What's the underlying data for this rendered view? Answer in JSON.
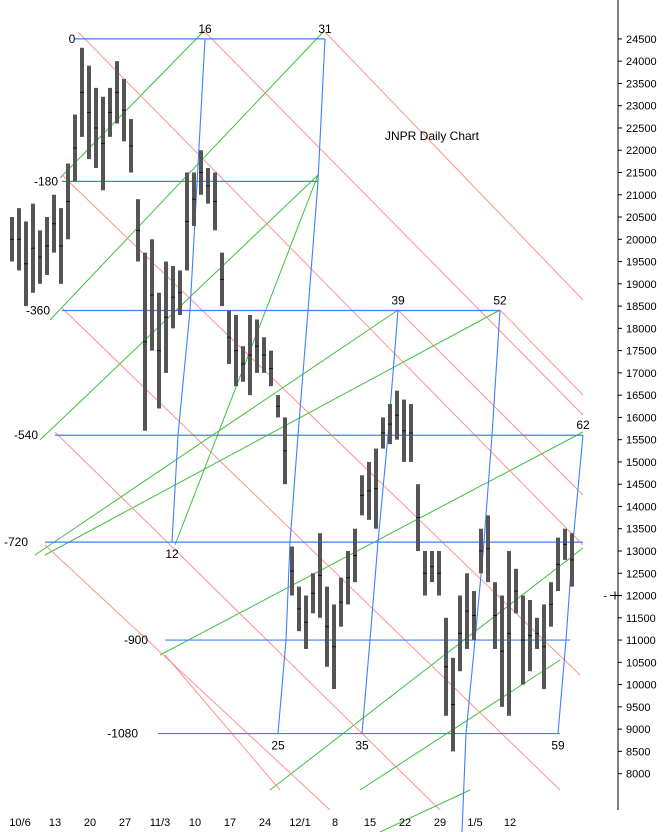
{
  "chart_data": {
    "type": "bar",
    "subtype": "ohlc-daily-with-gann-grid",
    "title": "JNPR Daily Chart",
    "xlabel": "",
    "ylabel": "",
    "ylim": [
      7700,
      24700
    ],
    "x_range": [
      -1,
      115
    ],
    "grid": false,
    "y_ticks": [
      8000,
      8500,
      9000,
      9500,
      10000,
      10500,
      11000,
      11500,
      12000,
      12500,
      13000,
      13500,
      14000,
      14500,
      15000,
      15500,
      16000,
      16500,
      17000,
      17500,
      18000,
      18500,
      19000,
      19500,
      20000,
      20500,
      21000,
      21500,
      22000,
      22500,
      23000,
      23500,
      24000,
      24500
    ],
    "x_ticks": [
      {
        "x": 0,
        "label": "10/6"
      },
      {
        "x": 5,
        "label": "13"
      },
      {
        "x": 10,
        "label": "20"
      },
      {
        "x": 15,
        "label": "27"
      },
      {
        "x": 20,
        "label": "11/3"
      },
      {
        "x": 25,
        "label": "10"
      },
      {
        "x": 30,
        "label": "17"
      },
      {
        "x": 35,
        "label": "24"
      },
      {
        "x": 40,
        "label": "12/1"
      },
      {
        "x": 45,
        "label": "8"
      },
      {
        "x": 50,
        "label": "15"
      },
      {
        "x": 55,
        "label": "22"
      },
      {
        "x": 60,
        "label": "29"
      },
      {
        "x": 65,
        "label": "1/5"
      },
      {
        "x": 70,
        "label": "12"
      }
    ],
    "last_price_marker": 12000,
    "bars": [
      {
        "x": 0,
        "high": 20500,
        "low": 19500
      },
      {
        "x": 1,
        "high": 20700,
        "low": 19300
      },
      {
        "x": 2,
        "high": 20400,
        "low": 18500
      },
      {
        "x": 3,
        "high": 20800,
        "low": 18800
      },
      {
        "x": 4,
        "high": 20200,
        "low": 19000
      },
      {
        "x": 5,
        "high": 20500,
        "low": 19200
      },
      {
        "x": 6,
        "high": 21000,
        "low": 19700
      },
      {
        "x": 7,
        "high": 20700,
        "low": 19000
      },
      {
        "x": 8,
        "high": 21700,
        "low": 20000
      },
      {
        "x": 9,
        "high": 22800,
        "low": 21300
      },
      {
        "x": 10,
        "high": 24300,
        "low": 22300
      },
      {
        "x": 11,
        "high": 23900,
        "low": 21800
      },
      {
        "x": 12,
        "high": 23400,
        "low": 21600
      },
      {
        "x": 13,
        "high": 23200,
        "low": 21100
      },
      {
        "x": 14,
        "high": 23400,
        "low": 22300
      },
      {
        "x": 15,
        "high": 24000,
        "low": 22600
      },
      {
        "x": 16,
        "high": 23600,
        "low": 22200
      },
      {
        "x": 17,
        "high": 22700,
        "low": 21500
      },
      {
        "x": 18,
        "high": 20900,
        "low": 19500
      },
      {
        "x": 19,
        "high": 19700,
        "low": 15700
      },
      {
        "x": 20,
        "high": 20000,
        "low": 17500
      },
      {
        "x": 21,
        "high": 18800,
        "low": 16200
      },
      {
        "x": 22,
        "high": 19500,
        "low": 17000
      },
      {
        "x": 23,
        "high": 19400,
        "low": 18000
      },
      {
        "x": 24,
        "high": 19300,
        "low": 18300
      },
      {
        "x": 25,
        "high": 21500,
        "low": 19300
      },
      {
        "x": 26,
        "high": 21500,
        "low": 20300
      },
      {
        "x": 27,
        "high": 22000,
        "low": 21000
      },
      {
        "x": 28,
        "high": 21600,
        "low": 20800
      },
      {
        "x": 29,
        "high": 21500,
        "low": 20200
      },
      {
        "x": 30,
        "high": 19700,
        "low": 18500
      },
      {
        "x": 31,
        "high": 18400,
        "low": 17200
      },
      {
        "x": 32,
        "high": 18300,
        "low": 16700
      },
      {
        "x": 33,
        "high": 17600,
        "low": 16800
      },
      {
        "x": 34,
        "high": 18300,
        "low": 16500
      },
      {
        "x": 35,
        "high": 18200,
        "low": 17000
      },
      {
        "x": 36,
        "high": 17800,
        "low": 17000
      },
      {
        "x": 37,
        "high": 17500,
        "low": 16700
      },
      {
        "x": 38,
        "high": 16500,
        "low": 16000
      },
      {
        "x": 39,
        "high": 16000,
        "low": 14500
      },
      {
        "x": 40,
        "high": 13100,
        "low": 12000
      },
      {
        "x": 41,
        "high": 12200,
        "low": 11200
      },
      {
        "x": 42,
        "high": 12000,
        "low": 10800
      },
      {
        "x": 43,
        "high": 12500,
        "low": 11600
      },
      {
        "x": 44,
        "high": 13400,
        "low": 11500
      },
      {
        "x": 45,
        "high": 12200,
        "low": 10400
      },
      {
        "x": 46,
        "high": 11800,
        "low": 9900
      },
      {
        "x": 47,
        "high": 12400,
        "low": 11300
      },
      {
        "x": 48,
        "high": 13000,
        "low": 11800
      },
      {
        "x": 49,
        "high": 13500,
        "low": 12300
      },
      {
        "x": 50,
        "high": 14700,
        "low": 13800
      },
      {
        "x": 51,
        "high": 15000,
        "low": 13700
      },
      {
        "x": 52,
        "high": 15300,
        "low": 13500
      },
      {
        "x": 53,
        "high": 16000,
        "low": 15300
      },
      {
        "x": 54,
        "high": 16300,
        "low": 15400
      },
      {
        "x": 55,
        "high": 16600,
        "low": 15500
      },
      {
        "x": 56,
        "high": 16400,
        "low": 15000
      },
      {
        "x": 57,
        "high": 16300,
        "low": 15000
      },
      {
        "x": 58,
        "high": 14500,
        "low": 13000
      },
      {
        "x": 59,
        "high": 13000,
        "low": 12000
      },
      {
        "x": 60,
        "high": 13000,
        "low": 12300
      },
      {
        "x": 61,
        "high": 13000,
        "low": 12000
      },
      {
        "x": 62,
        "high": 11500,
        "low": 9300
      },
      {
        "x": 63,
        "high": 10600,
        "low": 8500
      },
      {
        "x": 64,
        "high": 12000,
        "low": 10300
      },
      {
        "x": 65,
        "high": 12500,
        "low": 10800
      },
      {
        "x": 66,
        "high": 12100,
        "low": 11000
      },
      {
        "x": 67,
        "high": 13500,
        "low": 12500
      },
      {
        "x": 68,
        "high": 13800,
        "low": 12300
      },
      {
        "x": 69,
        "high": 12300,
        "low": 10800
      },
      {
        "x": 70,
        "high": 12000,
        "low": 9500
      },
      {
        "x": 71,
        "high": 13000,
        "low": 9300
      },
      {
        "x": 72,
        "high": 12600,
        "low": 11600
      },
      {
        "x": 73,
        "high": 12000,
        "low": 10000
      },
      {
        "x": 74,
        "high": 11900,
        "low": 10300
      },
      {
        "x": 75,
        "high": 11500,
        "low": 10800
      },
      {
        "x": 76,
        "high": 11800,
        "low": 9900
      },
      {
        "x": 77,
        "high": 12300,
        "low": 11300
      },
      {
        "x": 78,
        "high": 13300,
        "low": 12100
      },
      {
        "x": 79,
        "high": 13500,
        "low": 12800
      },
      {
        "x": 80,
        "high": 13400,
        "low": 12200
      }
    ],
    "gann_levels": [
      {
        "label": "0",
        "price": 24500
      },
      {
        "label": "-180",
        "price": 21300
      },
      {
        "label": "-360",
        "price": 18400
      },
      {
        "label": "-540",
        "price": 15600
      },
      {
        "label": "-720",
        "price": 13200
      },
      {
        "label": "-900",
        "price": 11000
      },
      {
        "label": "-1080",
        "price": 8900
      }
    ],
    "gann_time_labels": [
      "16",
      "31",
      "39",
      "52",
      "62",
      "12",
      "25",
      "35",
      "59"
    ],
    "gann_colors": {
      "level_line": "#3f7fff",
      "ascending_diagonal": "#3fbf3f",
      "descending_diagonal": "#ff7f7f",
      "price_bar": "#555555"
    }
  }
}
